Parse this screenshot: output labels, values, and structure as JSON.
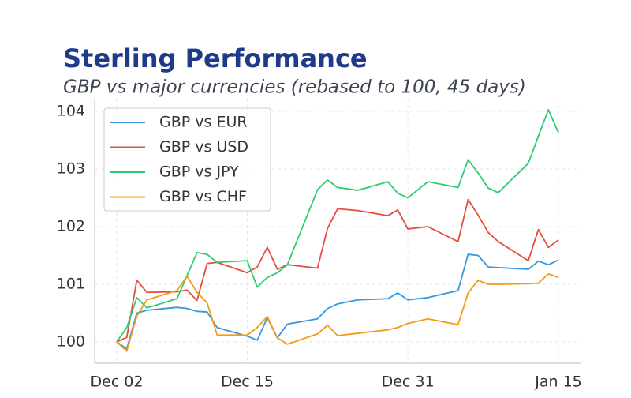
{
  "chart_data": {
    "type": "line",
    "title": "Sterling Performance",
    "subtitle": "GBP vs major currencies (rebased to 100, 45 days)",
    "x": [
      "Dec 02",
      "Dec 03",
      "Dec 04",
      "Dec 05",
      "Dec 08",
      "Dec 09",
      "Dec 10",
      "Dec 11",
      "Dec 12",
      "Dec 15",
      "Dec 16",
      "Dec 17",
      "Dec 18",
      "Dec 19",
      "Dec 22",
      "Dec 23",
      "Dec 24",
      "Dec 26",
      "Dec 29",
      "Dec 30",
      "Dec 31",
      "Jan 02",
      "Jan 05",
      "Jan 06",
      "Jan 07",
      "Jan 08",
      "Jan 09",
      "Jan 12",
      "Jan 13",
      "Jan 14",
      "Jan 15"
    ],
    "xticks": [
      "Dec 02",
      "Dec 15",
      "Dec 31",
      "Jan 15"
    ],
    "ylim": [
      99.63,
      104.22
    ],
    "yticks": [
      100,
      101,
      102,
      103,
      104
    ],
    "grid": true,
    "legend": "upper left",
    "series": [
      {
        "name": "GBP vs EUR",
        "color": "#3498db",
        "values": [
          100,
          99.88,
          100.5,
          100.55,
          100.6,
          100.58,
          100.53,
          100.52,
          100.25,
          100.1,
          100.03,
          100.42,
          100.07,
          100.31,
          100.4,
          100.58,
          100.66,
          100.73,
          100.75,
          100.85,
          100.73,
          100.77,
          100.89,
          101.52,
          101.5,
          101.3,
          101.29,
          101.26,
          101.4,
          101.34,
          101.42
        ]
      },
      {
        "name": "GBP vs USD",
        "color": "#e74c3c",
        "values": [
          100,
          100.08,
          101.07,
          100.86,
          100.87,
          100.9,
          100.72,
          101.36,
          101.38,
          101.2,
          101.3,
          101.64,
          101.26,
          101.34,
          101.28,
          101.97,
          102.31,
          102.28,
          102.19,
          102.29,
          101.96,
          102.0,
          101.74,
          102.47,
          102.2,
          101.9,
          101.74,
          101.41,
          101.95,
          101.64,
          101.77
        ]
      },
      {
        "name": "GBP vs JPY",
        "color": "#2ecc71",
        "values": [
          100,
          100.25,
          100.77,
          100.59,
          100.75,
          101.15,
          101.55,
          101.52,
          101.38,
          101.41,
          100.95,
          101.12,
          101.2,
          101.34,
          102.64,
          102.81,
          102.68,
          102.63,
          102.78,
          102.58,
          102.5,
          102.78,
          102.68,
          103.16,
          102.93,
          102.67,
          102.59,
          103.1,
          103.57,
          104.03,
          103.63
        ]
      },
      {
        "name": "GBP vs CHF",
        "color": "#f39c12",
        "values": [
          100,
          99.84,
          100.45,
          100.73,
          100.89,
          101.14,
          100.86,
          100.68,
          100.12,
          100.12,
          100.25,
          100.44,
          100.07,
          99.96,
          100.14,
          100.29,
          100.11,
          100.15,
          100.21,
          100.25,
          100.32,
          100.4,
          100.3,
          100.85,
          101.07,
          101.0,
          101.0,
          101.01,
          101.02,
          101.18,
          101.12
        ]
      }
    ]
  }
}
